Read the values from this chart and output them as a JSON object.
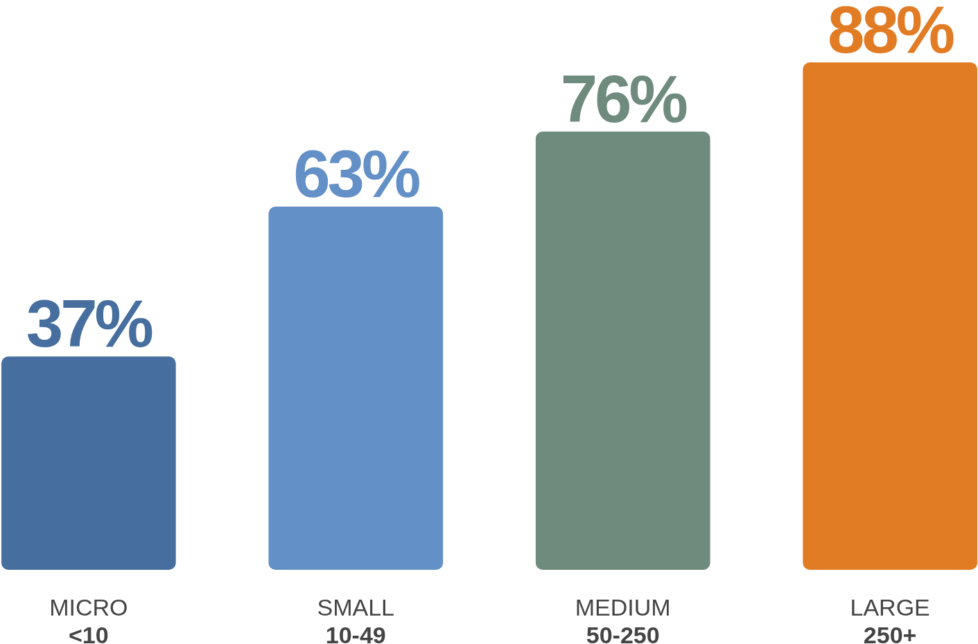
{
  "chart_data": {
    "type": "bar",
    "categories": [
      "MICRO\n<10",
      "SMALL\n10-49",
      "MEDIUM\n50-250",
      "LARGE\n250+"
    ],
    "values": [
      37,
      63,
      76,
      88
    ],
    "colors": [
      "#466e9e",
      "#6390c6",
      "#6e8b7d",
      "#e27c24"
    ],
    "value_labels": [
      "37%",
      "63%",
      "76%",
      "88%"
    ]
  }
}
